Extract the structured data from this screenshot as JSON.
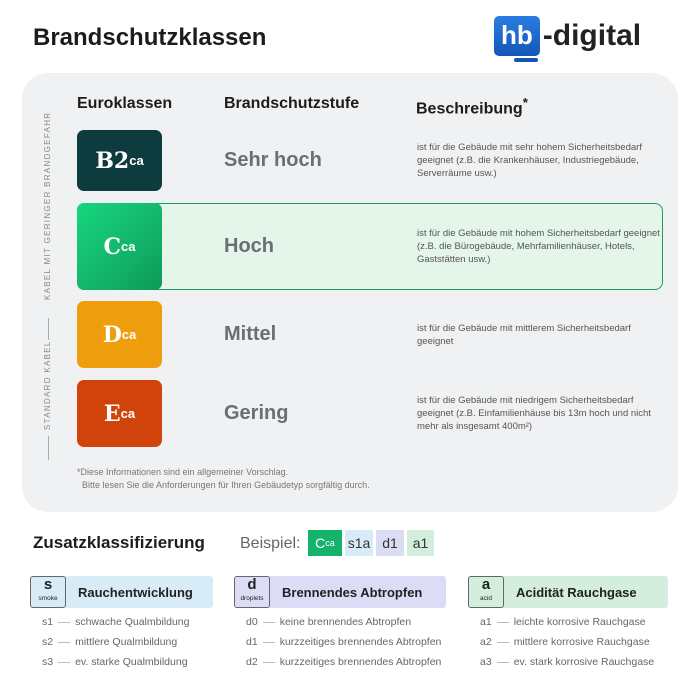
{
  "title": "Brandschutzklassen",
  "logo": {
    "box": "hb",
    "rest": "-digital",
    "color": "#1f6fd6"
  },
  "table": {
    "headers": [
      "Euroklassen",
      "Brandschutzstufe",
      "Beschreibung"
    ],
    "header_note": "*",
    "side_labels": [
      "KABEL MIT GERINGER BRANDGEFAHR",
      "STANDARD KABEL"
    ],
    "rows": [
      {
        "cls": "B2",
        "sub": "ca",
        "level": "Sehr hoch",
        "color": "#0d3b3e",
        "desc": "ist für die Gebäude mit sehr hohem Sicherheitsbedarf geeignet (z.B. die Krankenhäuser, Industriegebäude, Serverräume usw.)"
      },
      {
        "cls": "C",
        "sub": "ca",
        "level": "Hoch",
        "color": "#14b26a",
        "highlighted": true,
        "desc": "ist für die Gebäude mit hohem Sicherheitsbedarf geeignet (z.B. die Bürogebäude, Mehrfamilienhäuser, Hotels, Gaststätten usw.)"
      },
      {
        "cls": "D",
        "sub": "ca",
        "level": "Mittel",
        "color": "#ee9d0c",
        "desc": "ist für die Gebäude mit mittlerem Sicherheitsbedarf geeignet"
      },
      {
        "cls": "E",
        "sub": "ca",
        "level": "Gering",
        "color": "#d0430a",
        "desc": "ist für die Gebäude mit niedrigem Sicherheitsbedarf geeignet (z.B. Einfamilienhäuse bis 13m hoch und nicht mehr als insgesamt 400m²)"
      }
    ],
    "footnote": [
      "*Diese Informationen sind ein allgemeiner Vorschlag.",
      "Bitte lesen Sie die Anforderungen für Ihren Gebäudetyp sorgfältig durch."
    ]
  },
  "zusatz": {
    "title": "Zusatzklassifizierung",
    "beispiel_label": "Beispiel:",
    "example": [
      {
        "text": "C",
        "sub": "ca"
      },
      {
        "text": "s1a"
      },
      {
        "text": "d1"
      },
      {
        "text": "a1"
      }
    ],
    "categories": [
      {
        "key": "s",
        "key_sub": "smoke",
        "name": "Rauchentwicklung",
        "color": "#d8ecf8",
        "items": [
          [
            "s1",
            "schwache Qualmbildung"
          ],
          [
            "s2",
            "mittlere Qualmbildung"
          ],
          [
            "s3",
            "ev. starke Qualmbildung"
          ]
        ]
      },
      {
        "key": "d",
        "key_sub": "droplets",
        "name": "Brennendes Abtropfen",
        "color": "#dcdcf6",
        "items": [
          [
            "d0",
            "keine brennendes Abtropfen"
          ],
          [
            "d1",
            "kurzzeitiges brennendes Abtropfen"
          ],
          [
            "d2",
            "kurzzeitiges brennendes Abtropfen"
          ]
        ]
      },
      {
        "key": "a",
        "key_sub": "acid",
        "name": "Acidität Rauchgase",
        "color": "#d3eedd",
        "items": [
          [
            "a1",
            "leichte korrosive Rauchgase"
          ],
          [
            "a2",
            "mittlere korrosive Rauchgase"
          ],
          [
            "a3",
            "ev. stark korrosive Rauchgase"
          ]
        ]
      }
    ]
  }
}
